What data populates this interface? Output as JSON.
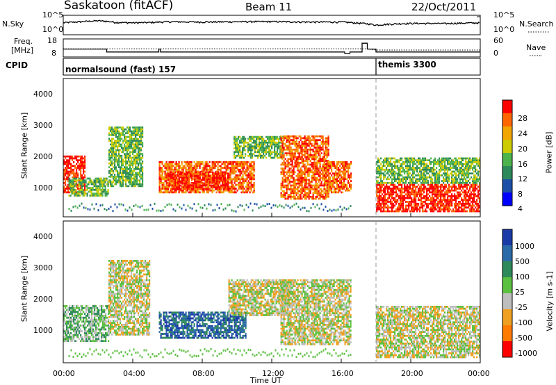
{
  "header": {
    "title": "Saskatoon (fitACF)",
    "beam": "Beam 11",
    "date": "22/Oct/2011"
  },
  "noise_panel": {
    "left_label": "N.Sky",
    "right_label": "N.Search",
    "y_ticks": [
      "10^5",
      "10^0"
    ],
    "right_ticks": [
      "10^5",
      "10^0"
    ]
  },
  "freq_panel": {
    "left_label_1": "Freq.",
    "left_label_2": "[MHz]",
    "right_label": "Nave",
    "left_ticks": [
      "18",
      "8"
    ],
    "right_ticks": [
      "60",
      "0"
    ]
  },
  "cpid_panel": {
    "left_label": "CPID",
    "modes": [
      {
        "name": "normalsound (fast) 157",
        "start_hr": 0,
        "end_hr": 18
      },
      {
        "name": "themis 3300",
        "start_hr": 18,
        "end_hr": 24
      }
    ]
  },
  "x_axis": {
    "label": "Time UT",
    "ticks": [
      "00:00",
      "04:00",
      "08:00",
      "12:00",
      "16:00",
      "20:00",
      "00:00"
    ],
    "tick_hours": [
      0,
      4,
      8,
      12,
      16,
      20,
      24
    ]
  },
  "power_panel": {
    "ylabel": "Slant Range [km]",
    "y_ticks": [
      "1000",
      "2000",
      "3000",
      "4000"
    ],
    "colorbar_label": "Power [dB]",
    "colorbar_ticks": [
      "4",
      "8",
      "12",
      "16",
      "20",
      "24",
      "28"
    ],
    "colors": [
      "#0000ff",
      "#1d4fa8",
      "#2e8a5a",
      "#4db34d",
      "#cccc00",
      "#f0a500",
      "#ff6600",
      "#ff0000"
    ]
  },
  "velocity_panel": {
    "ylabel": "Slant Range [km]",
    "y_ticks": [
      "1000",
      "2000",
      "3000",
      "4000"
    ],
    "colorbar_label": "Velocity [m s-1]",
    "colorbar_ticks": [
      "1000",
      "500",
      "100",
      "25",
      "-25",
      "-100",
      "-500",
      "-1000"
    ],
    "colors": [
      "#1a3aa8",
      "#2b6aa8",
      "#2e8a5a",
      "#5cc040",
      "#bebebe",
      "#f0a020",
      "#ff7a00",
      "#ff0000"
    ]
  },
  "chart_data": [
    {
      "type": "line",
      "title": "N.Sky / N.Search",
      "y_scale": "log",
      "ylim": [
        1,
        100000
      ],
      "x_hours": [
        0,
        1,
        2,
        3,
        4,
        5,
        6,
        8,
        10,
        12,
        14,
        16,
        17,
        18,
        20,
        22,
        24
      ],
      "series": [
        {
          "name": "N.Sky",
          "values": [
            1500,
            3000,
            6000,
            2000,
            1500,
            1800,
            3000,
            2500,
            3000,
            3500,
            2500,
            2500,
            1200,
            300,
            1000,
            900,
            1500
          ]
        }
      ]
    },
    {
      "type": "line",
      "title": "Freq. / Nave",
      "ylim": [
        8,
        18
      ],
      "x_hours": [
        0,
        2.3,
        2.5,
        4,
        4.5,
        5.5,
        5.6,
        10,
        12,
        16,
        16.2,
        16.5,
        17.2,
        17.5,
        18,
        24
      ],
      "series": [
        {
          "name": "Freq.",
          "values": [
            12,
            12,
            10,
            10,
            10,
            12,
            10,
            10,
            10,
            10,
            9,
            10,
            16,
            12,
            10,
            10
          ]
        },
        {
          "name": "Nave",
          "values": [
            25,
            25,
            25,
            25,
            25,
            25,
            25,
            25,
            25,
            25,
            25,
            25,
            25,
            25,
            20,
            20
          ]
        }
      ]
    },
    {
      "type": "heatmap",
      "title": "Power [dB]",
      "xlim_hours": [
        0,
        24
      ],
      "ylim_km": [
        200,
        4500
      ],
      "regions": [
        {
          "start_hr": 0,
          "end_hr": 1.3,
          "range_min": 900,
          "range_max": 2100,
          "value": 28
        },
        {
          "start_hr": 0.3,
          "end_hr": 2.6,
          "range_min": 800,
          "range_max": 1400,
          "value": 12
        },
        {
          "start_hr": 2.6,
          "end_hr": 4.6,
          "range_min": 1100,
          "range_max": 3000,
          "value": 12
        },
        {
          "start_hr": 5.5,
          "end_hr": 11.0,
          "range_min": 900,
          "range_max": 1900,
          "value": 24
        },
        {
          "start_hr": 6.0,
          "end_hr": 9.5,
          "range_min": 1000,
          "range_max": 1600,
          "value": 28
        },
        {
          "start_hr": 9.8,
          "end_hr": 12.7,
          "range_min": 2000,
          "range_max": 2700,
          "value": 12
        },
        {
          "start_hr": 12.5,
          "end_hr": 15.3,
          "range_min": 700,
          "range_max": 2700,
          "value": 24
        },
        {
          "start_hr": 15.0,
          "end_hr": 16.6,
          "range_min": 900,
          "range_max": 1900,
          "value": 24
        },
        {
          "start_hr": 18.0,
          "end_hr": 24.0,
          "range_min": 300,
          "range_max": 1200,
          "value": 28
        },
        {
          "start_hr": 18.0,
          "end_hr": 24.0,
          "range_min": 1200,
          "range_max": 2000,
          "value": 12
        }
      ]
    },
    {
      "type": "heatmap",
      "title": "Velocity [m s-1]",
      "xlim_hours": [
        0,
        24
      ],
      "ylim_km": [
        200,
        4500
      ],
      "regions": [
        {
          "start_hr": 0,
          "end_hr": 2.6,
          "range_min": 800,
          "range_max": 1900,
          "value": 100
        },
        {
          "start_hr": 2.6,
          "end_hr": 5.0,
          "range_min": 1000,
          "range_max": 3300,
          "value": 0
        },
        {
          "start_hr": 5.5,
          "end_hr": 10.5,
          "range_min": 900,
          "range_max": 1700,
          "value": 500
        },
        {
          "start_hr": 9.5,
          "end_hr": 13.0,
          "range_min": 1600,
          "range_max": 2700,
          "value": 0
        },
        {
          "start_hr": 12.5,
          "end_hr": 16.6,
          "range_min": 700,
          "range_max": 2700,
          "value": 0
        },
        {
          "start_hr": 18.0,
          "end_hr": 24.0,
          "range_min": 300,
          "range_max": 1900,
          "value": 0
        }
      ]
    }
  ]
}
